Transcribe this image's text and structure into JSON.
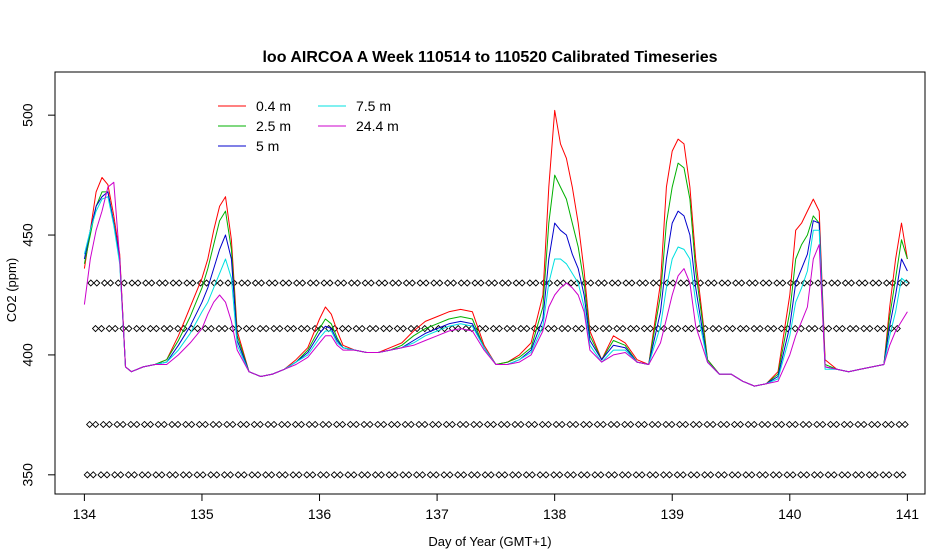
{
  "chart_data": {
    "type": "line",
    "title": "loo AIRCOA A  Week 110514 to 110520  Calibrated Timeseries",
    "xlabel": "Day of Year (GMT+1)",
    "ylabel": "CO2 (ppm)",
    "xlim": [
      133.75,
      141.15
    ],
    "ylim": [
      342,
      518
    ],
    "x_ticks": [
      134,
      135,
      136,
      137,
      138,
      139,
      140,
      141
    ],
    "y_ticks": [
      350,
      400,
      450,
      500
    ],
    "legend_position": "top-left",
    "grid": false,
    "series": [
      {
        "name": "0.4 m",
        "color": "#ff0000",
        "x": [
          134.0,
          134.05,
          134.1,
          134.15,
          134.2,
          134.25,
          134.3,
          134.35,
          134.4,
          134.5,
          134.6,
          134.7,
          134.8,
          134.9,
          135.0,
          135.05,
          135.1,
          135.15,
          135.2,
          135.25,
          135.3,
          135.4,
          135.5,
          135.6,
          135.7,
          135.8,
          135.9,
          136.0,
          136.05,
          136.1,
          136.15,
          136.2,
          136.3,
          136.4,
          136.5,
          136.6,
          136.7,
          136.8,
          136.9,
          137.0,
          137.1,
          137.2,
          137.3,
          137.4,
          137.5,
          137.6,
          137.7,
          137.8,
          137.9,
          137.95,
          138.0,
          138.05,
          138.1,
          138.15,
          138.2,
          138.25,
          138.3,
          138.4,
          138.5,
          138.6,
          138.7,
          138.8,
          138.9,
          138.95,
          139.0,
          139.05,
          139.1,
          139.15,
          139.2,
          139.3,
          139.4,
          139.5,
          139.6,
          139.7,
          139.8,
          139.9,
          140.0,
          140.05,
          140.1,
          140.15,
          140.2,
          140.25,
          140.3,
          140.4,
          140.5,
          140.6,
          140.7,
          140.8,
          140.85,
          140.9,
          140.95,
          141.0
        ],
        "values": [
          436,
          452,
          468,
          474,
          471,
          458,
          442,
          395,
          393,
          395,
          396,
          398,
          408,
          420,
          432,
          440,
          452,
          462,
          466,
          448,
          410,
          393,
          391,
          392,
          394,
          398,
          403,
          415,
          420,
          417,
          410,
          404,
          402,
          401,
          401,
          403,
          405,
          410,
          414,
          416,
          418,
          419,
          418,
          404,
          396,
          397,
          400,
          405,
          425,
          470,
          502,
          488,
          482,
          470,
          455,
          435,
          410,
          398,
          408,
          405,
          398,
          396,
          430,
          470,
          485,
          490,
          488,
          470,
          440,
          398,
          392,
          392,
          389,
          387,
          388,
          393,
          425,
          452,
          455,
          460,
          465,
          460,
          398,
          394,
          393,
          394,
          395,
          396,
          420,
          440,
          455,
          440
        ]
      },
      {
        "name": "2.5 m",
        "color": "#00b000",
        "x": [
          134.0,
          134.05,
          134.1,
          134.15,
          134.2,
          134.25,
          134.3,
          134.35,
          134.4,
          134.5,
          134.6,
          134.7,
          134.8,
          134.9,
          135.0,
          135.05,
          135.1,
          135.15,
          135.2,
          135.25,
          135.3,
          135.4,
          135.5,
          135.6,
          135.7,
          135.8,
          135.9,
          136.0,
          136.05,
          136.1,
          136.15,
          136.2,
          136.3,
          136.4,
          136.5,
          136.6,
          136.7,
          136.8,
          136.9,
          137.0,
          137.1,
          137.2,
          137.3,
          137.4,
          137.5,
          137.6,
          137.7,
          137.8,
          137.9,
          137.95,
          138.0,
          138.05,
          138.1,
          138.15,
          138.2,
          138.25,
          138.3,
          138.4,
          138.5,
          138.6,
          138.7,
          138.8,
          138.9,
          138.95,
          139.0,
          139.05,
          139.1,
          139.15,
          139.2,
          139.3,
          139.4,
          139.5,
          139.6,
          139.7,
          139.8,
          139.9,
          140.0,
          140.05,
          140.1,
          140.15,
          140.2,
          140.25,
          140.3,
          140.4,
          140.5,
          140.6,
          140.7,
          140.8,
          140.85,
          140.9,
          140.95,
          141.0
        ],
        "values": [
          438,
          450,
          462,
          468,
          468,
          455,
          440,
          395,
          393,
          395,
          396,
          398,
          406,
          416,
          428,
          436,
          446,
          456,
          460,
          444,
          408,
          393,
          391,
          392,
          394,
          397,
          402,
          411,
          415,
          413,
          407,
          403,
          402,
          401,
          401,
          402,
          404,
          408,
          411,
          413,
          415,
          416,
          415,
          403,
          396,
          397,
          399,
          403,
          420,
          455,
          475,
          470,
          465,
          455,
          445,
          430,
          408,
          398,
          406,
          404,
          397,
          396,
          425,
          455,
          470,
          480,
          478,
          465,
          435,
          398,
          392,
          392,
          389,
          387,
          388,
          392,
          418,
          440,
          446,
          450,
          458,
          455,
          396,
          394,
          393,
          394,
          395,
          396,
          416,
          432,
          448,
          440
        ]
      },
      {
        "name": "5 m",
        "color": "#0000cc",
        "x": [
          134.0,
          134.05,
          134.1,
          134.15,
          134.2,
          134.25,
          134.3,
          134.35,
          134.4,
          134.5,
          134.6,
          134.7,
          134.8,
          134.9,
          135.0,
          135.05,
          135.1,
          135.15,
          135.2,
          135.25,
          135.3,
          135.4,
          135.5,
          135.6,
          135.7,
          135.8,
          135.9,
          136.0,
          136.05,
          136.1,
          136.15,
          136.2,
          136.3,
          136.4,
          136.5,
          136.6,
          136.7,
          136.8,
          136.9,
          137.0,
          137.1,
          137.2,
          137.3,
          137.4,
          137.5,
          137.6,
          137.7,
          137.8,
          137.9,
          137.95,
          138.0,
          138.05,
          138.1,
          138.15,
          138.2,
          138.25,
          138.3,
          138.4,
          138.5,
          138.6,
          138.7,
          138.8,
          138.9,
          138.95,
          139.0,
          139.05,
          139.1,
          139.15,
          139.2,
          139.3,
          139.4,
          139.5,
          139.6,
          139.7,
          139.8,
          139.9,
          140.0,
          140.05,
          140.1,
          140.15,
          140.2,
          140.25,
          140.3,
          140.4,
          140.5,
          140.6,
          140.7,
          140.8,
          140.85,
          140.9,
          140.95,
          141.0
        ],
        "values": [
          440,
          452,
          462,
          466,
          468,
          455,
          440,
          395,
          393,
          395,
          396,
          397,
          404,
          412,
          422,
          428,
          436,
          444,
          450,
          440,
          406,
          393,
          391,
          392,
          394,
          397,
          401,
          409,
          412,
          411,
          406,
          403,
          402,
          401,
          401,
          402,
          403,
          406,
          409,
          411,
          413,
          414,
          413,
          403,
          396,
          396,
          398,
          402,
          415,
          440,
          455,
          452,
          450,
          442,
          436,
          425,
          406,
          398,
          404,
          403,
          397,
          396,
          418,
          440,
          455,
          460,
          458,
          450,
          428,
          397,
          392,
          392,
          389,
          387,
          388,
          391,
          412,
          430,
          436,
          442,
          456,
          455,
          395,
          394,
          393,
          394,
          395,
          396,
          412,
          425,
          440,
          435
        ]
      },
      {
        "name": "7.5 m",
        "color": "#00e0e0",
        "x": [
          134.0,
          134.05,
          134.1,
          134.15,
          134.2,
          134.25,
          134.3,
          134.35,
          134.4,
          134.5,
          134.6,
          134.7,
          134.8,
          134.9,
          135.0,
          135.05,
          135.1,
          135.15,
          135.2,
          135.25,
          135.3,
          135.4,
          135.5,
          135.6,
          135.7,
          135.8,
          135.9,
          136.0,
          136.05,
          136.1,
          136.15,
          136.2,
          136.3,
          136.4,
          136.5,
          136.6,
          136.7,
          136.8,
          136.9,
          137.0,
          137.1,
          137.2,
          137.3,
          137.4,
          137.5,
          137.6,
          137.7,
          137.8,
          137.9,
          137.95,
          138.0,
          138.05,
          138.1,
          138.15,
          138.2,
          138.25,
          138.3,
          138.4,
          138.5,
          138.6,
          138.7,
          138.8,
          138.9,
          138.95,
          139.0,
          139.05,
          139.1,
          139.15,
          139.2,
          139.3,
          139.4,
          139.5,
          139.6,
          139.7,
          139.8,
          139.9,
          140.0,
          140.05,
          140.1,
          140.15,
          140.2,
          140.25,
          140.3,
          140.4,
          140.5,
          140.6,
          140.7,
          140.8,
          140.85,
          140.9,
          140.95,
          141.0
        ],
        "values": [
          442,
          452,
          460,
          465,
          466,
          454,
          438,
          395,
          393,
          395,
          396,
          397,
          402,
          409,
          418,
          422,
          428,
          434,
          440,
          432,
          404,
          393,
          391,
          392,
          394,
          397,
          400,
          407,
          410,
          410,
          405,
          403,
          402,
          401,
          401,
          402,
          403,
          405,
          408,
          410,
          412,
          413,
          412,
          403,
          396,
          396,
          398,
          401,
          412,
          430,
          440,
          440,
          438,
          434,
          430,
          420,
          404,
          397,
          402,
          402,
          397,
          396,
          412,
          428,
          440,
          445,
          444,
          440,
          422,
          397,
          392,
          392,
          389,
          387,
          388,
          390,
          408,
          422,
          428,
          435,
          452,
          452,
          394,
          394,
          393,
          394,
          395,
          396,
          408,
          418,
          432,
          430
        ]
      },
      {
        "name": "24.4 m",
        "color": "#cc00cc",
        "x": [
          134.0,
          134.05,
          134.1,
          134.15,
          134.2,
          134.25,
          134.3,
          134.35,
          134.4,
          134.5,
          134.6,
          134.7,
          134.8,
          134.9,
          135.0,
          135.05,
          135.1,
          135.15,
          135.2,
          135.25,
          135.3,
          135.4,
          135.5,
          135.6,
          135.7,
          135.8,
          135.9,
          136.0,
          136.05,
          136.1,
          136.15,
          136.2,
          136.3,
          136.4,
          136.5,
          136.6,
          136.7,
          136.8,
          136.9,
          137.0,
          137.1,
          137.2,
          137.3,
          137.4,
          137.5,
          137.6,
          137.7,
          137.8,
          137.9,
          137.95,
          138.0,
          138.05,
          138.1,
          138.15,
          138.2,
          138.25,
          138.3,
          138.4,
          138.5,
          138.6,
          138.7,
          138.8,
          138.9,
          138.95,
          139.0,
          139.05,
          139.1,
          139.15,
          139.2,
          139.3,
          139.4,
          139.5,
          139.6,
          139.7,
          139.8,
          139.9,
          140.0,
          140.05,
          140.1,
          140.15,
          140.2,
          140.25,
          140.3,
          140.4,
          140.5,
          140.6,
          140.7,
          140.8,
          140.85,
          140.9,
          140.95,
          141.0
        ],
        "values": [
          421,
          440,
          452,
          460,
          470,
          472,
          440,
          395,
          393,
          395,
          396,
          396,
          400,
          405,
          411,
          417,
          422,
          425,
          422,
          414,
          402,
          393,
          391,
          392,
          394,
          396,
          399,
          405,
          408,
          408,
          404,
          402,
          402,
          401,
          401,
          402,
          403,
          404,
          406,
          408,
          410,
          411,
          410,
          402,
          396,
          396,
          397,
          400,
          410,
          420,
          425,
          428,
          430,
          428,
          425,
          418,
          402,
          397,
          400,
          401,
          397,
          396,
          405,
          415,
          425,
          433,
          436,
          430,
          412,
          397,
          392,
          392,
          389,
          387,
          388,
          389,
          400,
          408,
          414,
          420,
          440,
          446,
          395,
          394,
          393,
          394,
          395,
          396,
          404,
          410,
          414,
          418
        ]
      }
    ],
    "marker_rows": [
      {
        "y": 430,
        "x_start": 134.08,
        "x_step": 0.1167,
        "x_end": 141.0
      },
      {
        "y": 411,
        "x_start": 134.12,
        "x_step": 0.1167,
        "x_end": 141.0
      },
      {
        "y": 371,
        "x_start": 134.07,
        "x_step": 0.1167,
        "x_end": 141.0
      },
      {
        "y": 350,
        "x_start": 134.05,
        "x_step": 0.1167,
        "x_end": 141.0
      }
    ]
  }
}
